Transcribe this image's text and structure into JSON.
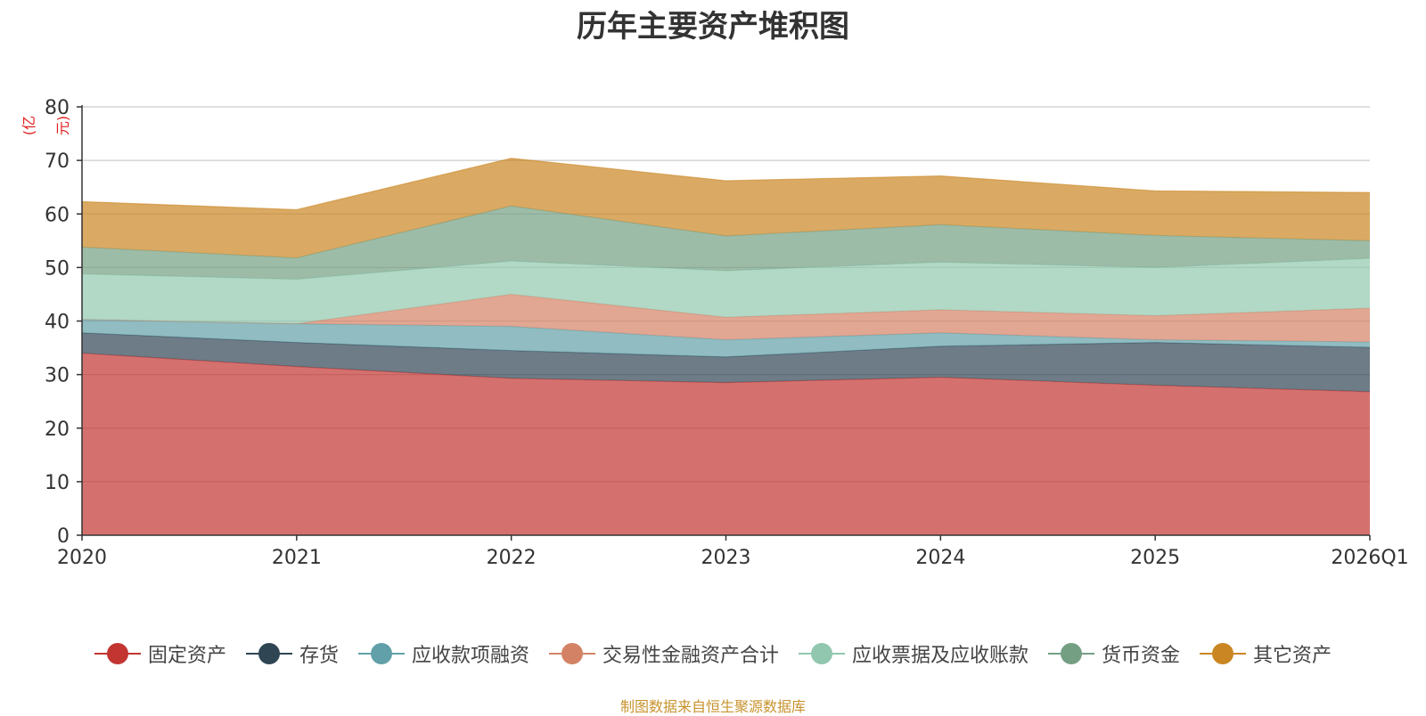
{
  "chart_data": {
    "type": "area",
    "stacked": true,
    "title": "历年主要资产堆积图",
    "unit_label": "(亿元)",
    "categories": [
      "2020",
      "2021",
      "2022",
      "2023",
      "2024",
      "2025",
      "2026Q1"
    ],
    "ylim": [
      0,
      80
    ],
    "yticks": [
      0,
      10,
      20,
      30,
      40,
      50,
      60,
      70,
      80
    ],
    "grid": true,
    "legend_position": "bottom",
    "series": [
      {
        "name": "固定资产",
        "color": "#c23531",
        "values": [
          34.0,
          31.5,
          29.3,
          28.5,
          29.5,
          28.0,
          26.8
        ]
      },
      {
        "name": "存货",
        "color": "#2f4554",
        "values": [
          3.8,
          4.5,
          5.2,
          4.8,
          5.8,
          8.0,
          8.3
        ]
      },
      {
        "name": "应收款项融资",
        "color": "#61a0a8",
        "values": [
          2.5,
          3.5,
          4.5,
          3.2,
          2.5,
          0.5,
          1.0
        ]
      },
      {
        "name": "交易性金融资产合计",
        "color": "#d48265",
        "values": [
          0.0,
          0.0,
          6.0,
          4.2,
          4.3,
          4.5,
          6.3
        ]
      },
      {
        "name": "应收票据及应收账款",
        "color": "#91c7ae",
        "values": [
          8.5,
          8.3,
          6.2,
          8.7,
          8.9,
          9.0,
          9.3
        ]
      },
      {
        "name": "货币资金",
        "color": "#749f83",
        "values": [
          5.0,
          4.0,
          10.3,
          6.5,
          7.0,
          6.0,
          3.3
        ]
      },
      {
        "name": "其它资产",
        "color": "#ca8622",
        "values": [
          8.5,
          9.0,
          8.9,
          10.3,
          9.1,
          8.3,
          9.0
        ]
      }
    ]
  },
  "source_note": "制图数据来自恒生聚源数据库"
}
